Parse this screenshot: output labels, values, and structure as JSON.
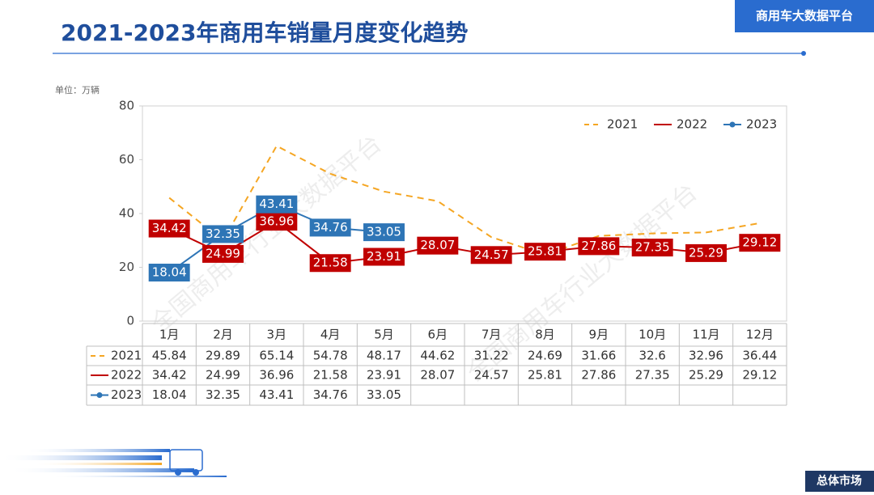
{
  "header": {
    "title": "2021-2023年商用车销量月度变化趋势",
    "brand": "商用车大数据平台"
  },
  "footer": {
    "section": "总体市场"
  },
  "chart_data": {
    "type": "line",
    "unit_label": "单位：万辆",
    "watermark": "全国商用车行业大数据平台",
    "categories": [
      "1月",
      "2月",
      "3月",
      "4月",
      "5月",
      "6月",
      "7月",
      "8月",
      "9月",
      "10月",
      "11月",
      "12月"
    ],
    "series": [
      {
        "name": "2021",
        "color": "#f5a623",
        "dashed": true,
        "labels": false,
        "values": [
          45.84,
          29.89,
          65.14,
          54.78,
          48.17,
          44.62,
          31.22,
          24.69,
          31.66,
          32.6,
          32.96,
          36.44
        ]
      },
      {
        "name": "2022",
        "color": "#c00000",
        "dashed": false,
        "labels": true,
        "values": [
          34.42,
          24.99,
          36.96,
          21.58,
          23.91,
          28.07,
          24.57,
          25.81,
          27.86,
          27.35,
          25.29,
          29.12
        ]
      },
      {
        "name": "2023",
        "color": "#2e75b6",
        "dashed": false,
        "labels": true,
        "markers": true,
        "values": [
          18.04,
          32.35,
          43.41,
          34.76,
          33.05,
          null,
          null,
          null,
          null,
          null,
          null,
          null
        ]
      }
    ],
    "ylim": [
      0,
      80
    ],
    "yticks": [
      0,
      20,
      40,
      60,
      80
    ],
    "legend": "top-right",
    "data_table": true
  }
}
